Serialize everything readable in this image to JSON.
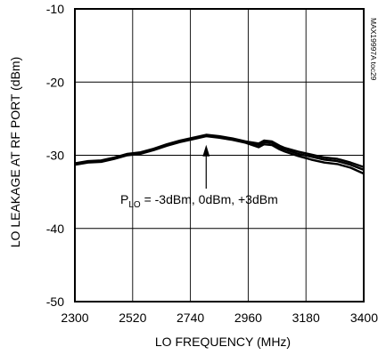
{
  "chart_data": {
    "type": "line",
    "code_label": "MAX19997A toc29",
    "xlabel": "LO FREQUENCY (MHz)",
    "ylabel": "LO LEAKAGE AT RF PORT (dBm)",
    "xlim": [
      2300,
      3400
    ],
    "ylim": [
      -50,
      -10
    ],
    "x_ticks": [
      2300,
      2520,
      2740,
      2960,
      3180,
      3400
    ],
    "y_ticks": [
      -10,
      -20,
      -30,
      -40,
      -50
    ],
    "grid": true,
    "annotation": {
      "prefix": "P",
      "subscript": "LO",
      "text": " = -3dBm, 0dBm, +3dBm",
      "arrow_to": [
        2800,
        -27.6
      ]
    },
    "series": [
      {
        "x": [
          2300,
          2350,
          2400,
          2450,
          2500,
          2550,
          2600,
          2650,
          2700,
          2750,
          2800,
          2850,
          2900,
          2950,
          3000,
          3020,
          3050,
          3080,
          3100,
          3150,
          3200,
          3250,
          3300,
          3350,
          3400
        ],
        "y": [
          -31.3,
          -31.0,
          -30.9,
          -30.5,
          -30.0,
          -29.8,
          -29.3,
          -28.7,
          -28.2,
          -27.8,
          -27.4,
          -27.6,
          -27.9,
          -28.3,
          -28.9,
          -28.5,
          -28.6,
          -29.2,
          -29.5,
          -30.1,
          -30.6,
          -31.0,
          -31.2,
          -31.7,
          -32.5
        ]
      },
      {
        "x": [
          2300,
          2350,
          2400,
          2450,
          2500,
          2550,
          2600,
          2650,
          2700,
          2750,
          2800,
          2850,
          2900,
          2950,
          3000,
          3020,
          3050,
          3080,
          3100,
          3150,
          3200,
          3250,
          3300,
          3350,
          3400
        ],
        "y": [
          -31.2,
          -30.9,
          -30.8,
          -30.4,
          -29.9,
          -29.7,
          -29.2,
          -28.6,
          -28.1,
          -27.7,
          -27.3,
          -27.5,
          -27.8,
          -28.2,
          -28.6,
          -28.2,
          -28.3,
          -29.0,
          -29.2,
          -29.8,
          -30.2,
          -30.6,
          -30.8,
          -31.3,
          -32.0
        ]
      },
      {
        "x": [
          2300,
          2350,
          2400,
          2450,
          2500,
          2550,
          2600,
          2650,
          2700,
          2750,
          2800,
          2850,
          2900,
          2950,
          3000,
          3020,
          3050,
          3080,
          3100,
          3150,
          3200,
          3250,
          3300,
          3350,
          3400
        ],
        "y": [
          -31.1,
          -30.8,
          -30.7,
          -30.3,
          -29.8,
          -29.6,
          -29.1,
          -28.5,
          -28.0,
          -27.6,
          -27.2,
          -27.4,
          -27.7,
          -28.1,
          -28.4,
          -28.0,
          -28.1,
          -28.7,
          -29.0,
          -29.5,
          -29.9,
          -30.3,
          -30.5,
          -31.0,
          -31.6
        ]
      }
    ]
  }
}
